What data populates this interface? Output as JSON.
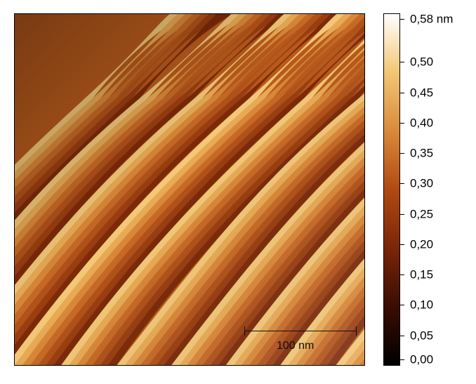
{
  "image": {
    "type": "afm-topography",
    "colormap": [
      "#000000",
      "#3a0d03",
      "#7a2608",
      "#b04a12",
      "#d98a3a",
      "#f2c673",
      "#ffffff"
    ]
  },
  "colorbar": {
    "unit": "nm",
    "ticks": [
      {
        "value": 0.58,
        "label": "0,58 nm"
      },
      {
        "value": 0.5,
        "label": "0,50"
      },
      {
        "value": 0.45,
        "label": "0,45"
      },
      {
        "value": 0.4,
        "label": "0,40"
      },
      {
        "value": 0.35,
        "label": "0,35"
      },
      {
        "value": 0.3,
        "label": "0,30"
      },
      {
        "value": 0.25,
        "label": "0,25"
      },
      {
        "value": 0.2,
        "label": "0,20"
      },
      {
        "value": 0.15,
        "label": "0,15"
      },
      {
        "value": 0.1,
        "label": "0,10"
      },
      {
        "value": 0.05,
        "label": "0,05"
      },
      {
        "value": 0.0,
        "label": "0,00"
      }
    ],
    "range": [
      0.0,
      0.58
    ]
  },
  "scalebar": {
    "label": "100 nm"
  }
}
